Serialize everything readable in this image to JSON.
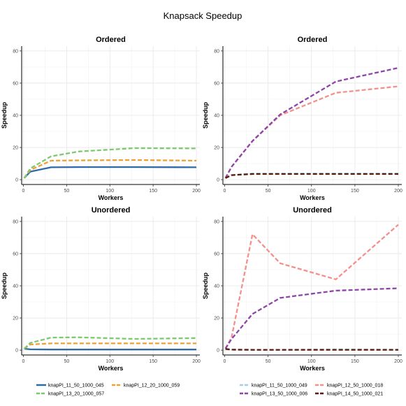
{
  "figure_title": "Knapsack  Speedup",
  "chart_data": [
    {
      "type": "line",
      "title": "Ordered",
      "xlabel": "Workers",
      "ylabel": "Speedup",
      "xlim": [
        -2,
        204
      ],
      "ylim": [
        -3,
        83
      ],
      "xticks": [
        0,
        50,
        100,
        150,
        200
      ],
      "yticks": [
        0,
        20,
        40,
        60,
        80
      ],
      "grid": true,
      "series": [
        {
          "name": "knapPI_11_50_1000_045",
          "color": "#2f6aa8",
          "dash": "solid",
          "x": [
            1,
            8,
            32,
            64,
            128,
            200
          ],
          "y": [
            1,
            5,
            7.7,
            7.8,
            7.8,
            7.7
          ]
        },
        {
          "name": "knapPI_12_20_1000_059",
          "color": "#f0a030",
          "dash": "dashed",
          "x": [
            1,
            8,
            32,
            64,
            128,
            200
          ],
          "y": [
            1,
            6,
            11.8,
            12,
            12.2,
            11.8
          ]
        },
        {
          "name": "knapPI_13_20_1000_057",
          "color": "#7dc970",
          "dash": "dashed",
          "x": [
            1,
            8,
            32,
            64,
            128,
            200
          ],
          "y": [
            1,
            7,
            14.5,
            17.5,
            19.6,
            19.4
          ]
        }
      ]
    },
    {
      "type": "line",
      "title": "Ordered",
      "xlabel": "Workers",
      "ylabel": "Speedup",
      "xlim": [
        -2,
        204
      ],
      "ylim": [
        -3,
        83
      ],
      "xticks": [
        0,
        50,
        100,
        150,
        200
      ],
      "yticks": [
        0,
        20,
        40,
        60,
        80
      ],
      "grid": true,
      "series": [
        {
          "name": "knapPI_11_50_1000_049",
          "color": "#a6cee3",
          "dash": "dashed",
          "x": [
            1,
            8,
            32,
            64,
            128,
            200
          ],
          "y": [
            1,
            2.8,
            3.8,
            3.8,
            3.8,
            3.8
          ]
        },
        {
          "name": "knapPI_12_50_1000_018",
          "color": "#f4908a",
          "dash": "dashed",
          "x": [
            1,
            8,
            32,
            64,
            128,
            200
          ],
          "y": [
            1,
            8,
            24,
            40,
            54,
            58
          ]
        },
        {
          "name": "knapPI_13_50_1000_006",
          "color": "#8e44a8",
          "dash": "dashed",
          "x": [
            1,
            8,
            32,
            64,
            128,
            200
          ],
          "y": [
            1,
            8,
            24,
            40.5,
            61,
            69.5
          ]
        },
        {
          "name": "knapPI_14_50_1000_021",
          "color": "#5a1a0a",
          "dash": "dashed",
          "x": [
            1,
            8,
            32,
            64,
            128,
            200
          ],
          "y": [
            1,
            2.8,
            3.5,
            3.5,
            3.5,
            3.5
          ]
        }
      ]
    },
    {
      "type": "line",
      "title": "Unordered",
      "xlabel": "Workers",
      "ylabel": "Speedup",
      "xlim": [
        -2,
        204
      ],
      "ylim": [
        -3,
        83
      ],
      "xticks": [
        0,
        50,
        100,
        150,
        200
      ],
      "yticks": [
        0,
        20,
        40,
        60,
        80
      ],
      "grid": true,
      "series": [
        {
          "name": "knapPI_11_50_1000_045",
          "color": "#2f6aa8",
          "dash": "solid",
          "x": [
            1,
            8,
            32,
            64,
            128,
            200
          ],
          "y": [
            0.9,
            0.5,
            0.4,
            0.4,
            0.4,
            0.4
          ]
        },
        {
          "name": "knapPI_12_20_1000_059",
          "color": "#f0a030",
          "dash": "dashed",
          "x": [
            1,
            8,
            32,
            64,
            128,
            200
          ],
          "y": [
            1,
            3.5,
            4.2,
            4.2,
            4.2,
            4.2
          ]
        },
        {
          "name": "knapPI_13_20_1000_057",
          "color": "#7dc970",
          "dash": "dashed",
          "x": [
            1,
            8,
            32,
            64,
            128,
            200
          ],
          "y": [
            1,
            4.5,
            7.8,
            8.0,
            7.0,
            7.5
          ]
        }
      ]
    },
    {
      "type": "line",
      "title": "Unordered",
      "xlabel": "Workers",
      "ylabel": "Speedup",
      "xlim": [
        -2,
        204
      ],
      "ylim": [
        -3,
        83
      ],
      "xticks": [
        0,
        50,
        100,
        150,
        200
      ],
      "yticks": [
        0,
        20,
        40,
        60,
        80
      ],
      "grid": true,
      "series": [
        {
          "name": "knapPI_11_50_1000_049",
          "color": "#a6cee3",
          "dash": "dashed",
          "x": [
            1,
            8,
            32,
            64,
            128,
            200
          ],
          "y": [
            0.5,
            0.3,
            0.2,
            0.2,
            0.5,
            0.3
          ]
        },
        {
          "name": "knapPI_12_50_1000_018",
          "color": "#f4908a",
          "dash": "dashed",
          "x": [
            1,
            8,
            32,
            64,
            128,
            200
          ],
          "y": [
            1,
            8,
            72,
            54,
            44,
            78
          ]
        },
        {
          "name": "knapPI_13_50_1000_006",
          "color": "#8e44a8",
          "dash": "dashed",
          "x": [
            1,
            8,
            32,
            64,
            128,
            200
          ],
          "y": [
            1,
            7,
            22.5,
            32.5,
            37,
            38.5
          ]
        },
        {
          "name": "knapPI_14_50_1000_021",
          "color": "#5a1a0a",
          "dash": "dashed",
          "x": [
            1,
            8,
            32,
            64,
            128,
            200
          ],
          "y": [
            0.8,
            0.3,
            0.2,
            0.2,
            0.2,
            0.2
          ]
        }
      ]
    }
  ],
  "legends": [
    {
      "entries": [
        {
          "name": "knapPI_11_50_1000_045",
          "color": "#2f6aa8",
          "dash": "solid"
        },
        {
          "name": "knapPI_12_20_1000_059",
          "color": "#f0a030",
          "dash": "dashed"
        },
        {
          "name": "knapPI_13_20_1000_057",
          "color": "#7dc970",
          "dash": "dashed"
        }
      ]
    },
    {
      "entries": [
        {
          "name": "knapPI_11_50_1000_049",
          "color": "#a6cee3",
          "dash": "dashed"
        },
        {
          "name": "knapPI_12_50_1000_018",
          "color": "#f4908a",
          "dash": "dashed"
        },
        {
          "name": "knapPI_13_50_1000_006",
          "color": "#8e44a8",
          "dash": "dashed"
        },
        {
          "name": "knapPI_14_50_1000_021",
          "color": "#5a1a0a",
          "dash": "dashed"
        }
      ]
    }
  ]
}
